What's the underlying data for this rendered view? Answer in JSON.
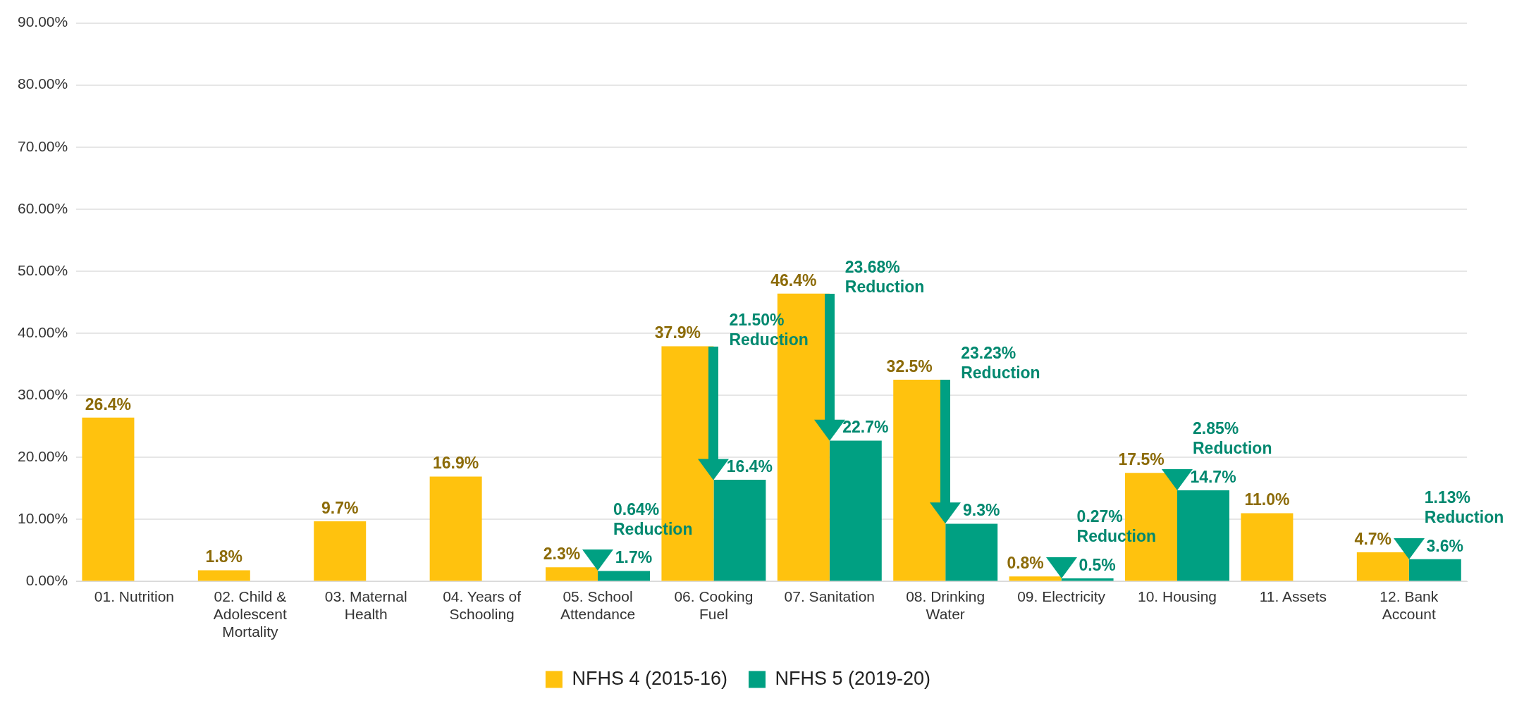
{
  "chart_data": {
    "type": "bar",
    "categories": [
      "01. Nutrition",
      "02. Child & Adolescent Mortality",
      "03. Maternal Health",
      "04. Years of Schooling",
      "05. School Attendance",
      "06. Cooking Fuel",
      "07. Sanitation",
      "08. Drinking Water",
      "09. Electricity",
      "10. Housing",
      "11. Assets",
      "12. Bank Account"
    ],
    "series": [
      {
        "name": "NFHS 4 (2015-16)",
        "color": "#ffc20e",
        "values": [
          26.4,
          1.8,
          9.7,
          16.9,
          2.3,
          37.9,
          46.4,
          32.5,
          0.8,
          17.5,
          11.0,
          4.7
        ],
        "value_labels": [
          "26.4%",
          "1.8%",
          "9.7%",
          "16.9%",
          "2.3%",
          "37.9%",
          "46.4%",
          "32.5%",
          "0.8%",
          "17.5%",
          "11.0%",
          "4.7%"
        ]
      },
      {
        "name": "NFHS 5 (2019-20)",
        "color": "#00a082",
        "values": [
          null,
          null,
          null,
          null,
          1.7,
          16.4,
          22.7,
          9.3,
          0.5,
          14.7,
          null,
          3.6
        ],
        "value_labels": [
          null,
          null,
          null,
          null,
          "1.7%",
          "16.4%",
          "22.7%",
          "9.3%",
          "0.5%",
          "14.7%",
          null,
          "3.6%"
        ]
      }
    ],
    "ylim": [
      0,
      90
    ],
    "yticks": [
      {
        "value": 0,
        "label": "0.00%"
      },
      {
        "value": 10,
        "label": "10.00%"
      },
      {
        "value": 20,
        "label": "20.00%"
      },
      {
        "value": 30,
        "label": "30.00%"
      },
      {
        "value": 40,
        "label": "40.00%"
      },
      {
        "value": 50,
        "label": "50.00%"
      },
      {
        "value": 60,
        "label": "60.00%"
      },
      {
        "value": 70,
        "label": "70.00%"
      },
      {
        "value": 80,
        "label": "80.00%"
      },
      {
        "value": 90,
        "label": "90.00%"
      }
    ],
    "grid": "y",
    "legend": "bottom",
    "annotations": [
      "0.64% Reduction",
      "21.50% Reduction",
      "23.68% Reduction",
      "23.23% Reduction",
      "0.27% Reduction",
      "2.85% Reduction",
      "1.13% Reduction"
    ]
  }
}
